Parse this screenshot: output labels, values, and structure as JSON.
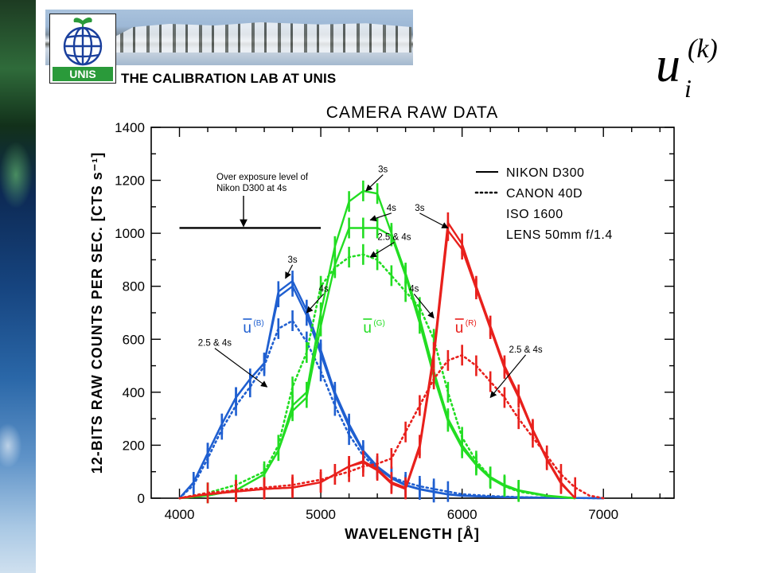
{
  "header": {
    "logo_text": "UNIS",
    "lab_title": "THE CALIBRATION LAB AT UNIS",
    "formula": {
      "base": "u",
      "subscript": "i",
      "superscript": "(k)"
    }
  },
  "colors": {
    "blue": "#1f5fd0",
    "green": "#22dd22",
    "red": "#e8201c",
    "logo_green": "#2a9a3a",
    "logo_blue": "#1a3f9c"
  },
  "chart_data": {
    "type": "line",
    "title": "CAMERA RAW DATA",
    "xlabel": "WAVELENGTH [Å]",
    "ylabel": "12-BITS RAW COUNTS PER SEC. [CTS s⁻¹]",
    "xlim": [
      3800,
      7500
    ],
    "ylim": [
      0,
      1400
    ],
    "x_ticks": [
      4000,
      5000,
      6000,
      7000
    ],
    "y_ticks": [
      0,
      200,
      400,
      600,
      800,
      1000,
      1200,
      1400
    ],
    "legend": {
      "placement": "top-right",
      "entries": [
        "NIKON D300",
        "CANON 40D",
        "ISO 1600",
        "LENS 50mm f/1.4"
      ]
    },
    "overexposure": {
      "label_line1": "Over exposure level of",
      "label_line2": "Nikon D300 at 4s",
      "y": 1020,
      "x_start": 4000,
      "x_end": 5000
    },
    "channel_labels": [
      {
        "base": "u",
        "sup": "(B)",
        "color": "#1f5fd0",
        "x": 4450,
        "y": 625
      },
      {
        "base": "u",
        "sup": "(G)",
        "color": "#22dd22",
        "x": 5300,
        "y": 625
      },
      {
        "base": "u",
        "sup": "(R)",
        "color": "#e8201c",
        "x": 5950,
        "y": 625
      }
    ],
    "annotations": [
      {
        "text": "3s",
        "tx": 4800,
        "ty": 890,
        "ax": 4750,
        "ay": 830
      },
      {
        "text": "4s",
        "tx": 5020,
        "ty": 780,
        "ax": 4900,
        "ay": 700
      },
      {
        "text": "2.5 & 4s",
        "tx": 4250,
        "ty": 575,
        "ax": 4620,
        "ay": 420
      },
      {
        "text": "3s",
        "tx": 5440,
        "ty": 1230,
        "ax": 5320,
        "ay": 1160
      },
      {
        "text": "4s",
        "tx": 5500,
        "ty": 1085,
        "ax": 5350,
        "ay": 1050
      },
      {
        "text": "2.5 & 4s",
        "tx": 5520,
        "ty": 975,
        "ax": 5350,
        "ay": 910
      },
      {
        "text": "4s",
        "tx": 5660,
        "ty": 780,
        "ax": 5800,
        "ay": 680
      },
      {
        "text": "3s",
        "tx": 5700,
        "ty": 1085,
        "ax": 5900,
        "ay": 1020
      },
      {
        "text": "2.5 & 4s",
        "tx": 6450,
        "ty": 550,
        "ax": 6200,
        "ay": 380
      }
    ],
    "series": [
      {
        "name": "NIKON D300",
        "channel": "B",
        "exposure": "3s",
        "style": "solid",
        "color": "#1f5fd0",
        "x": [
          4000,
          4100,
          4200,
          4300,
          4400,
          4500,
          4600,
          4700,
          4800,
          4900,
          5000,
          5100,
          5200,
          5300,
          5400,
          5500,
          5600,
          5700,
          5800,
          5900,
          6000,
          6200,
          6400,
          6600,
          6800,
          7000
        ],
        "y": [
          0,
          60,
          170,
          280,
          380,
          450,
          510,
          780,
          820,
          710,
          560,
          400,
          280,
          180,
          120,
          80,
          50,
          35,
          25,
          15,
          10,
          5,
          3,
          2,
          1,
          0
        ]
      },
      {
        "name": "NIKON D300",
        "channel": "B",
        "exposure": "4s",
        "style": "solid",
        "color": "#1f5fd0",
        "x": [
          4000,
          4100,
          4200,
          4300,
          4400,
          4500,
          4600,
          4700,
          4800,
          4900,
          5000,
          5100,
          5200,
          5300,
          5400,
          5500,
          5600,
          5700,
          5800,
          5900,
          6000,
          6200,
          6400,
          6600,
          6800,
          7000
        ],
        "y": [
          0,
          60,
          170,
          280,
          380,
          450,
          510,
          760,
          800,
          690,
          545,
          390,
          270,
          175,
          115,
          75,
          48,
          33,
          23,
          14,
          9,
          5,
          3,
          2,
          1,
          0
        ]
      },
      {
        "name": "CANON 40D",
        "channel": "B",
        "exposure": "2.5 & 4s",
        "style": "dotted",
        "color": "#1f5fd0",
        "x": [
          4000,
          4100,
          4200,
          4300,
          4400,
          4500,
          4600,
          4700,
          4800,
          4900,
          5000,
          5100,
          5200,
          5300,
          5400,
          5500,
          5600,
          5700,
          5800,
          5900,
          6000,
          6200,
          6400,
          6600,
          6800,
          7000
        ],
        "y": [
          0,
          50,
          150,
          260,
          350,
          420,
          500,
          640,
          670,
          590,
          480,
          350,
          240,
          160,
          110,
          80,
          60,
          45,
          35,
          25,
          15,
          8,
          4,
          2,
          1,
          0
        ]
      },
      {
        "name": "NIKON D300",
        "channel": "G",
        "exposure": "3s",
        "style": "solid",
        "color": "#22dd22",
        "x": [
          4000,
          4200,
          4400,
          4600,
          4700,
          4800,
          4900,
          5000,
          5100,
          5200,
          5300,
          5400,
          5500,
          5600,
          5700,
          5800,
          5900,
          6000,
          6100,
          6200,
          6300,
          6400,
          6600,
          6800
        ],
        "y": [
          0,
          10,
          30,
          90,
          180,
          350,
          400,
          700,
          950,
          1120,
          1160,
          1150,
          1000,
          850,
          680,
          480,
          300,
          200,
          130,
          80,
          50,
          30,
          10,
          0
        ]
      },
      {
        "name": "NIKON D300",
        "channel": "G",
        "exposure": "4s",
        "style": "solid",
        "color": "#22dd22",
        "x": [
          4000,
          4200,
          4400,
          4600,
          4700,
          4800,
          4900,
          5000,
          5100,
          5200,
          5300,
          5400,
          5500,
          5600,
          5700,
          5800,
          5900,
          6000,
          6100,
          6200,
          6300,
          6400,
          6600,
          6800
        ],
        "y": [
          0,
          10,
          30,
          90,
          180,
          330,
          380,
          650,
          880,
          1020,
          1020,
          1020,
          990,
          840,
          660,
          460,
          290,
          190,
          125,
          75,
          45,
          28,
          8,
          0
        ]
      },
      {
        "name": "CANON 40D",
        "channel": "G",
        "exposure": "2.5 & 4s",
        "style": "dotted",
        "color": "#22dd22",
        "x": [
          4000,
          4200,
          4400,
          4600,
          4700,
          4800,
          4900,
          5000,
          5100,
          5200,
          5300,
          5400,
          5500,
          5600,
          5700,
          5800,
          5900,
          6000,
          6100,
          6200,
          6300,
          6400,
          6600,
          6800
        ],
        "y": [
          0,
          20,
          50,
          100,
          200,
          420,
          550,
          800,
          870,
          910,
          920,
          900,
          840,
          780,
          720,
          600,
          400,
          230,
          140,
          80,
          45,
          25,
          8,
          0
        ]
      },
      {
        "name": "NIKON D300",
        "channel": "R",
        "exposure": "3s",
        "style": "solid",
        "color": "#e8201c",
        "x": [
          4000,
          4200,
          4400,
          4600,
          4800,
          5000,
          5100,
          5200,
          5300,
          5400,
          5500,
          5600,
          5700,
          5800,
          5900,
          6000,
          6100,
          6200,
          6300,
          6400,
          6500,
          6600,
          6700,
          6800
        ],
        "y": [
          0,
          15,
          25,
          35,
          40,
          60,
          90,
          120,
          140,
          110,
          60,
          40,
          200,
          550,
          1040,
          960,
          800,
          650,
          500,
          390,
          260,
          150,
          60,
          0
        ]
      },
      {
        "name": "NIKON D300",
        "channel": "R",
        "exposure": "4s",
        "style": "solid",
        "color": "#e8201c",
        "x": [
          4000,
          4200,
          4400,
          4600,
          4800,
          5000,
          5100,
          5200,
          5300,
          5400,
          5500,
          5600,
          5700,
          5800,
          5900,
          6000,
          6100,
          6200,
          6300,
          6400,
          6500,
          6600,
          6700,
          6800
        ],
        "y": [
          0,
          15,
          25,
          35,
          40,
          60,
          90,
          120,
          135,
          105,
          55,
          35,
          190,
          530,
          1010,
          940,
          790,
          640,
          490,
          380,
          255,
          145,
          55,
          0
        ]
      },
      {
        "name": "CANON 40D",
        "channel": "R",
        "exposure": "2.5 & 4s",
        "style": "dotted",
        "color": "#e8201c",
        "x": [
          4000,
          4200,
          4400,
          4600,
          4800,
          5000,
          5200,
          5300,
          5400,
          5500,
          5600,
          5700,
          5800,
          5900,
          6000,
          6100,
          6200,
          6300,
          6400,
          6500,
          6600,
          6700,
          6800,
          6900,
          7000
        ],
        "y": [
          0,
          20,
          30,
          40,
          50,
          70,
          100,
          120,
          130,
          150,
          250,
          350,
          450,
          520,
          540,
          500,
          440,
          380,
          300,
          230,
          160,
          90,
          40,
          10,
          0
        ]
      }
    ]
  }
}
